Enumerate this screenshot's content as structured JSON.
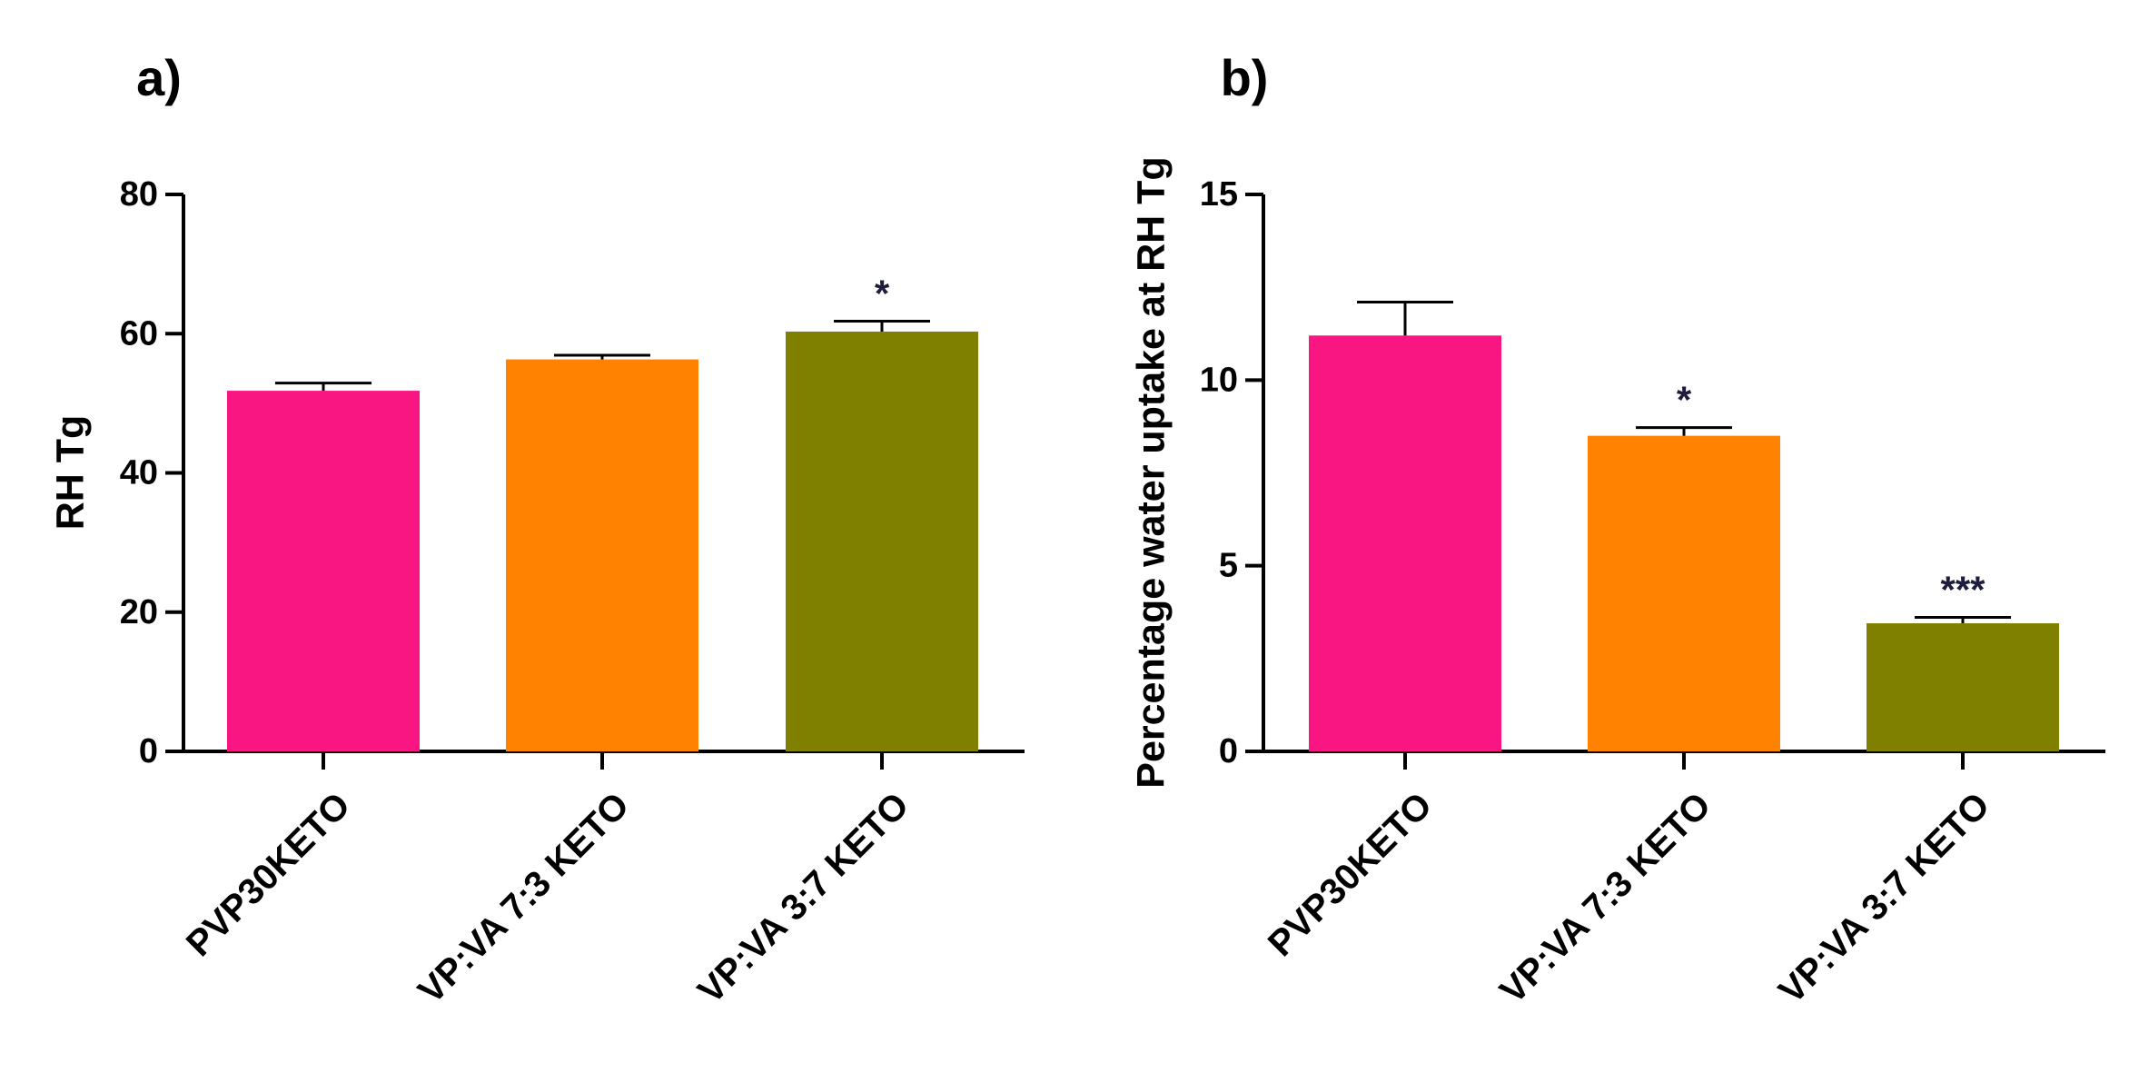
{
  "chart_data": [
    {
      "type": "bar",
      "panel_label": "a)",
      "title": "",
      "xlabel": "",
      "ylabel": "RH Tg",
      "ylim": [
        0,
        80
      ],
      "yticks": [
        0,
        20,
        40,
        60,
        80
      ],
      "grid": false,
      "categories": [
        "PVP30KETO",
        "VP:VA 7:3 KETO",
        "VP:VA 3:7 KETO"
      ],
      "series": [
        {
          "values": [
            51.8,
            56.3,
            60.3
          ],
          "errors": [
            1.1,
            0.6,
            1.5
          ],
          "colors": [
            "#fa1682",
            "#ff8200",
            "#808000"
          ],
          "significance": [
            "",
            "",
            "*"
          ]
        }
      ]
    },
    {
      "type": "bar",
      "panel_label": "b)",
      "title": "",
      "xlabel": "",
      "ylabel": "Percentage water uptake at RH Tg",
      "ylim": [
        0,
        15
      ],
      "yticks": [
        0,
        5,
        10,
        15
      ],
      "grid": false,
      "categories": [
        "PVP30KETO",
        "VP:VA 7:3 KETO",
        "VP:VA 3:7 KETO"
      ],
      "series": [
        {
          "values": [
            11.2,
            8.5,
            3.45
          ],
          "errors": [
            0.9,
            0.22,
            0.16
          ],
          "colors": [
            "#fa1682",
            "#ff8200",
            "#808000"
          ],
          "significance": [
            "",
            "*",
            "***"
          ]
        }
      ]
    }
  ]
}
